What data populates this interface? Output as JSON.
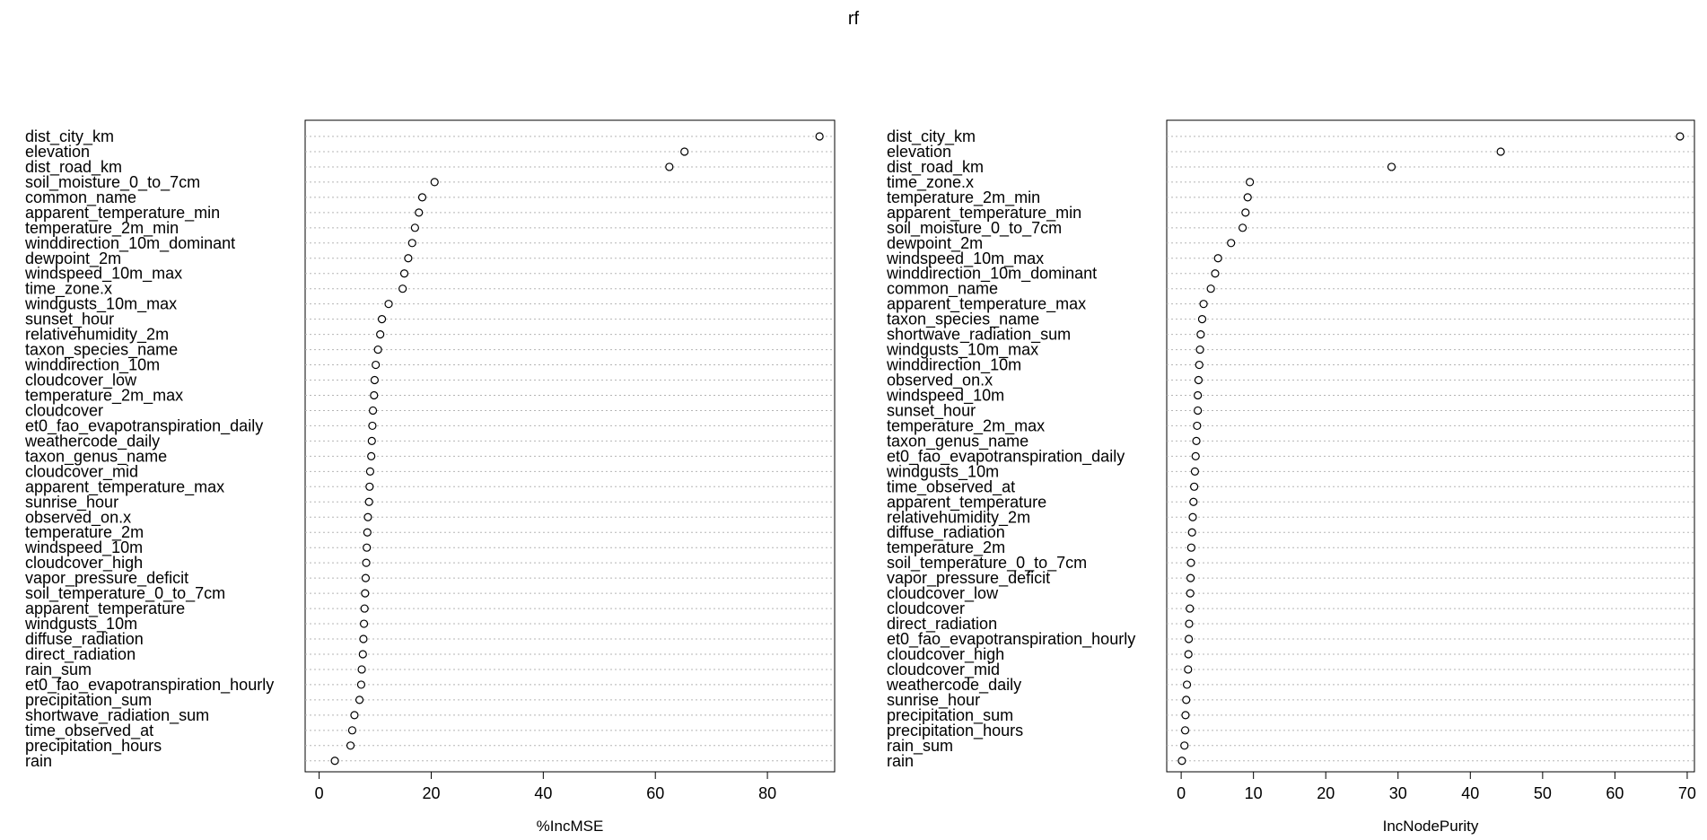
{
  "title": "rf",
  "chart_data": [
    {
      "type": "scatter",
      "subtype": "dotchart",
      "xlabel": "%IncMSE",
      "xlim": [
        -2.5,
        92
      ],
      "xticks": [
        0,
        20,
        40,
        60,
        80
      ],
      "grid": "dotted horizontal",
      "points": [
        {
          "label": "dist_city_km",
          "value": 89.3
        },
        {
          "label": "elevation",
          "value": 65.2
        },
        {
          "label": "dist_road_km",
          "value": 62.5
        },
        {
          "label": "soil_moisture_0_to_7cm",
          "value": 20.6
        },
        {
          "label": "common_name",
          "value": 18.4
        },
        {
          "label": "apparent_temperature_min",
          "value": 17.8
        },
        {
          "label": "temperature_2m_min",
          "value": 17.1
        },
        {
          "label": "winddirection_10m_dominant",
          "value": 16.6
        },
        {
          "label": "dewpoint_2m",
          "value": 15.9
        },
        {
          "label": "windspeed_10m_max",
          "value": 15.2
        },
        {
          "label": "time_zone.x",
          "value": 14.9
        },
        {
          "label": "windgusts_10m_max",
          "value": 12.4
        },
        {
          "label": "sunset_hour",
          "value": 11.2
        },
        {
          "label": "relativehumidity_2m",
          "value": 10.9
        },
        {
          "label": "taxon_species_name",
          "value": 10.5
        },
        {
          "label": "winddirection_10m",
          "value": 10.1
        },
        {
          "label": "cloudcover_low",
          "value": 9.9
        },
        {
          "label": "temperature_2m_max",
          "value": 9.8
        },
        {
          "label": "cloudcover",
          "value": 9.6
        },
        {
          "label": "et0_fao_evapotranspiration_daily",
          "value": 9.5
        },
        {
          "label": "weathercode_daily",
          "value": 9.4
        },
        {
          "label": "taxon_genus_name",
          "value": 9.3
        },
        {
          "label": "cloudcover_mid",
          "value": 9.1
        },
        {
          "label": "apparent_temperature_max",
          "value": 9.0
        },
        {
          "label": "sunrise_hour",
          "value": 8.9
        },
        {
          "label": "observed_on.x",
          "value": 8.7
        },
        {
          "label": "temperature_2m",
          "value": 8.6
        },
        {
          "label": "windspeed_10m",
          "value": 8.5
        },
        {
          "label": "cloudcover_high",
          "value": 8.4
        },
        {
          "label": "vapor_pressure_deficit",
          "value": 8.3
        },
        {
          "label": "soil_temperature_0_to_7cm",
          "value": 8.2
        },
        {
          "label": "apparent_temperature",
          "value": 8.1
        },
        {
          "label": "windgusts_10m",
          "value": 8.0
        },
        {
          "label": "diffuse_radiation",
          "value": 7.9
        },
        {
          "label": "direct_radiation",
          "value": 7.8
        },
        {
          "label": "rain_sum",
          "value": 7.6
        },
        {
          "label": "et0_fao_evapotranspiration_hourly",
          "value": 7.5
        },
        {
          "label": "precipitation_sum",
          "value": 7.2
        },
        {
          "label": "shortwave_radiation_sum",
          "value": 6.3
        },
        {
          "label": "time_observed_at",
          "value": 5.9
        },
        {
          "label": "precipitation_hours",
          "value": 5.6
        },
        {
          "label": "rain",
          "value": 2.8
        }
      ]
    },
    {
      "type": "scatter",
      "subtype": "dotchart",
      "xlabel": "IncNodePurity",
      "xlim": [
        -2,
        71
      ],
      "xticks": [
        0,
        10,
        20,
        30,
        40,
        50,
        60,
        70
      ],
      "grid": "dotted horizontal",
      "points": [
        {
          "label": "dist_city_km",
          "value": 69.0
        },
        {
          "label": "elevation",
          "value": 44.2
        },
        {
          "label": "dist_road_km",
          "value": 29.1
        },
        {
          "label": "time_zone.x",
          "value": 9.5
        },
        {
          "label": "temperature_2m_min",
          "value": 9.2
        },
        {
          "label": "apparent_temperature_min",
          "value": 8.9
        },
        {
          "label": "soil_moisture_0_to_7cm",
          "value": 8.5
        },
        {
          "label": "dewpoint_2m",
          "value": 6.9
        },
        {
          "label": "windspeed_10m_max",
          "value": 5.1
        },
        {
          "label": "winddirection_10m_dominant",
          "value": 4.7
        },
        {
          "label": "common_name",
          "value": 4.1
        },
        {
          "label": "apparent_temperature_max",
          "value": 3.1
        },
        {
          "label": "taxon_species_name",
          "value": 2.9
        },
        {
          "label": "shortwave_radiation_sum",
          "value": 2.7
        },
        {
          "label": "windgusts_10m_max",
          "value": 2.6
        },
        {
          "label": "winddirection_10m",
          "value": 2.5
        },
        {
          "label": "observed_on.x",
          "value": 2.4
        },
        {
          "label": "windspeed_10m",
          "value": 2.3
        },
        {
          "label": "sunset_hour",
          "value": 2.3
        },
        {
          "label": "temperature_2m_max",
          "value": 2.2
        },
        {
          "label": "taxon_genus_name",
          "value": 2.1
        },
        {
          "label": "et0_fao_evapotranspiration_daily",
          "value": 2.0
        },
        {
          "label": "windgusts_10m",
          "value": 1.9
        },
        {
          "label": "time_observed_at",
          "value": 1.8
        },
        {
          "label": "apparent_temperature",
          "value": 1.7
        },
        {
          "label": "relativehumidity_2m",
          "value": 1.6
        },
        {
          "label": "diffuse_radiation",
          "value": 1.5
        },
        {
          "label": "temperature_2m",
          "value": 1.4
        },
        {
          "label": "soil_temperature_0_to_7cm",
          "value": 1.35
        },
        {
          "label": "vapor_pressure_deficit",
          "value": 1.3
        },
        {
          "label": "cloudcover_low",
          "value": 1.25
        },
        {
          "label": "cloudcover",
          "value": 1.2
        },
        {
          "label": "direct_radiation",
          "value": 1.1
        },
        {
          "label": "et0_fao_evapotranspiration_hourly",
          "value": 1.05
        },
        {
          "label": "cloudcover_high",
          "value": 1.0
        },
        {
          "label": "cloudcover_mid",
          "value": 0.95
        },
        {
          "label": "weathercode_daily",
          "value": 0.8
        },
        {
          "label": "sunrise_hour",
          "value": 0.7
        },
        {
          "label": "precipitation_sum",
          "value": 0.6
        },
        {
          "label": "precipitation_hours",
          "value": 0.55
        },
        {
          "label": "rain_sum",
          "value": 0.45
        },
        {
          "label": "rain",
          "value": 0.1
        }
      ]
    }
  ]
}
